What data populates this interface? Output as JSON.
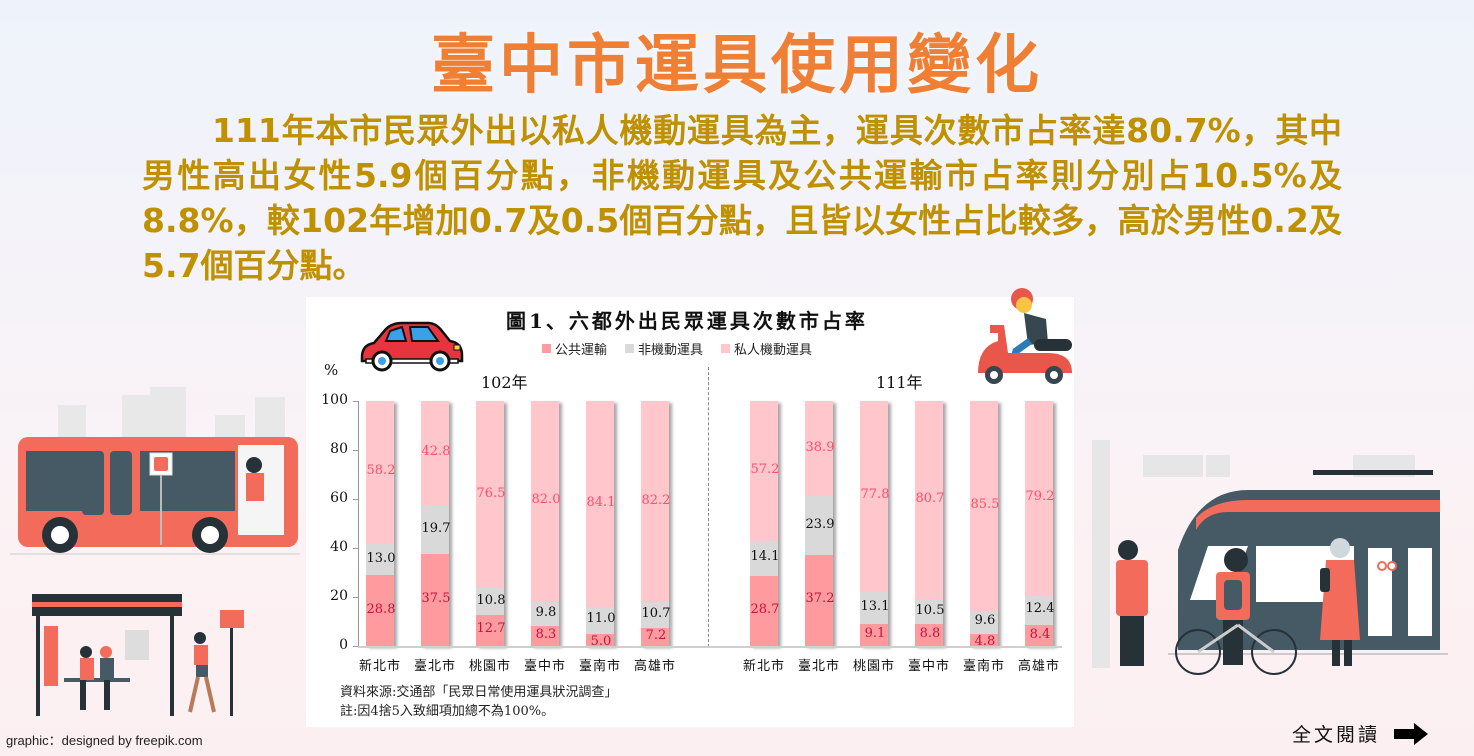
{
  "header": {
    "title": "臺中市運具使用變化"
  },
  "summary": {
    "paragraph": "111年本市民眾外出以私人機動運具為主，運具次數市占率達80.7%，其中男性高出女性5.9個百分點，非機動運具及公共運輸市占率則分別占10.5%及8.8%，較102年增加0.7及0.5個百分點，且皆以女性占比較多，高於男性0.2及5.7個百分點。"
  },
  "chart_panel": {
    "title": "圖1、六都外出民眾運具次數市占率",
    "y_unit": "%",
    "source_line": "資料來源:交通部「民眾日常使用運具狀況調查」",
    "note_line": "註:因4捨5入致細項加總不為100%。"
  },
  "chart_data": {
    "type": "bar",
    "stacked": true,
    "title": "圖1、六都外出民眾運具次數市占率",
    "xlabel": "",
    "ylabel": "%",
    "ylim": [
      0,
      100
    ],
    "yticks": [
      "0",
      "20",
      "40",
      "60",
      "80",
      "100"
    ],
    "legend": [
      "公共運輸",
      "非機動運具",
      "私人機動運具"
    ],
    "legend_position": "top",
    "colors": {
      "公共運輸": "#ff9b9f",
      "非機動運具": "#d9d9d9",
      "私人機動運具": "#ffc7cb"
    },
    "label_colors": {
      "公共運輸": "#c0143c",
      "非機動運具": "#111111",
      "私人機動運具": "#ff4d6a"
    },
    "groups": [
      {
        "year_label": "102年",
        "categories": [
          "新北市",
          "臺北市",
          "桃園市",
          "臺中市",
          "臺南市",
          "高雄市"
        ],
        "series": [
          {
            "name": "公共運輸",
            "values": [
              28.8,
              37.5,
              12.7,
              8.3,
              5.0,
              7.2
            ]
          },
          {
            "name": "非機動運具",
            "values": [
              13.0,
              19.7,
              10.8,
              9.8,
              11.0,
              10.7
            ]
          },
          {
            "name": "私人機動運具",
            "values": [
              58.2,
              42.8,
              76.5,
              82.0,
              84.1,
              82.2
            ]
          }
        ]
      },
      {
        "year_label": "111年",
        "categories": [
          "新北市",
          "臺北市",
          "桃園市",
          "臺中市",
          "臺南市",
          "高雄市"
        ],
        "series": [
          {
            "name": "公共運輸",
            "values": [
              28.7,
              37.2,
              9.1,
              8.8,
              4.8,
              8.4
            ]
          },
          {
            "name": "非機動運具",
            "values": [
              14.1,
              23.9,
              13.1,
              10.5,
              9.6,
              12.4
            ]
          },
          {
            "name": "私人機動運具",
            "values": [
              57.2,
              38.9,
              77.8,
              80.7,
              85.5,
              79.2
            ]
          }
        ]
      }
    ]
  },
  "footer": {
    "credit": "graphic：designed by freepik.com",
    "read_more_label": "全文閱讀",
    "read_more_icon": "right-arrow-icon"
  },
  "illustrations": {
    "car": "car-icon",
    "scooter": "scooter-rider-icon",
    "bus": "bus-illustration",
    "bus_stop": "bus-stop-illustration",
    "train": "train-station-illustration"
  }
}
